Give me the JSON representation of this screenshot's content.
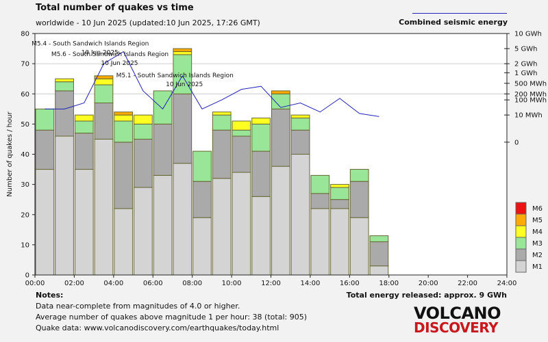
{
  "header": {
    "title": "Total number of quakes vs time",
    "subtitle": "worldwide - 10 Jun 2025 (updated:10 Jun 2025, 17:26 GMT)",
    "energy_legend_label": "Combined seismic energy"
  },
  "colors": {
    "M1": "#d4d4d4",
    "M2": "#aaaaaa",
    "M3": "#99e699",
    "M4": "#ffff22",
    "M5": "#ffaa00",
    "M6": "#ee1111",
    "energy_line": "#2222bb",
    "background": "#f2f2f2"
  },
  "chart_data": {
    "type": "bar",
    "stacked": true,
    "ylabel": "Number of quakes / hour",
    "ylim": [
      0,
      80
    ],
    "yticks": [
      "0",
      "10",
      "20",
      "30",
      "40",
      "50",
      "60",
      "70",
      "80"
    ],
    "xticks": [
      "00:00",
      "02:00",
      "04:00",
      "06:00",
      "08:00",
      "10:00",
      "12:00",
      "14:00",
      "16:00",
      "18:00",
      "20:00",
      "22:00",
      "24:00"
    ],
    "x_range_hours": [
      0,
      24
    ],
    "grid_lines": [
      60,
      70
    ],
    "legend": [
      "M6",
      "M5",
      "M4",
      "M3",
      "M2",
      "M1"
    ],
    "series": [
      {
        "name": "M1",
        "values": [
          35,
          46,
          35,
          45,
          22,
          29,
          33,
          37,
          19,
          32,
          34,
          26,
          36,
          40,
          22,
          22,
          19,
          3
        ]
      },
      {
        "name": "M2",
        "values": [
          13,
          15,
          12,
          12,
          22,
          16,
          17,
          23,
          12,
          16,
          12,
          15,
          19,
          8,
          5,
          3,
          12,
          8
        ]
      },
      {
        "name": "M3",
        "values": [
          7,
          3,
          4,
          6,
          7,
          5,
          11,
          13,
          10,
          5,
          2,
          9,
          5,
          4,
          6,
          4,
          4,
          2
        ]
      },
      {
        "name": "M4",
        "values": [
          0,
          1,
          2,
          2,
          2,
          3,
          0,
          1,
          0,
          1,
          3,
          2,
          0,
          1,
          0,
          1,
          0,
          0
        ]
      },
      {
        "name": "M5",
        "values": [
          0,
          0,
          0,
          1,
          1,
          0,
          0,
          1,
          0,
          0,
          0,
          0,
          1,
          0,
          0,
          0,
          0,
          0
        ]
      },
      {
        "name": "M6",
        "values": [
          0,
          0,
          0,
          0,
          0,
          0,
          0,
          0,
          0,
          0,
          0,
          0,
          0,
          0,
          0,
          0,
          0,
          0
        ]
      }
    ],
    "energy_axis": {
      "labels": [
        "10 GWh",
        "5 GWh",
        "2 GWh",
        "1 GWh",
        "500 MWh",
        "200 MWh",
        "100 MWh",
        "10 MWh",
        "0"
      ],
      "levels_on_quake_scale": [
        80,
        75,
        70,
        67,
        63.5,
        60,
        58,
        53,
        44
      ]
    },
    "energy_line": {
      "name": "Combined seismic energy",
      "x_hours": [
        0.5,
        1.5,
        2.5,
        3.5,
        4.5,
        5.5,
        6.5,
        7.5,
        8.5,
        9.5,
        10.5,
        11.5,
        12.5,
        13.5,
        14.5,
        15.5,
        16.5,
        17.5
      ],
      "levels_on_quake_scale": [
        55,
        55,
        57,
        70,
        74,
        61,
        55,
        66,
        55,
        58,
        61.5,
        62.5,
        55.5,
        57,
        54,
        58.5,
        53.5,
        52.5
      ]
    },
    "annotations": [
      {
        "lines": [
          "M5.4 - South Sandwich Islands Region",
          "10 Jun 2025"
        ],
        "x_hour": 3.3,
        "y": 76
      },
      {
        "lines": [
          "M5.6 - South Sandwich Islands Region",
          "10 Jun 2025"
        ],
        "x_hour": 4.3,
        "y": 72.5
      },
      {
        "lines": [
          "M5.1 - South Sandwich Islands Region",
          "10 Jun 2025"
        ],
        "x_hour": 7.6,
        "y": 65.5
      }
    ]
  },
  "notes": {
    "heading": "Notes:",
    "line1": "Data near-complete from magnitudes of 4.0 or higher.",
    "line2": "Average number of quakes above magnitude 1 per hour: 38 (total: 905)",
    "line3": "Quake data: www.volcanodiscovery.com/earthquakes/today.html",
    "total_energy": "Total energy released: approx. 9 GWh"
  },
  "logo": {
    "line1": "VOLCANO",
    "line2": "DISCOVERY"
  }
}
